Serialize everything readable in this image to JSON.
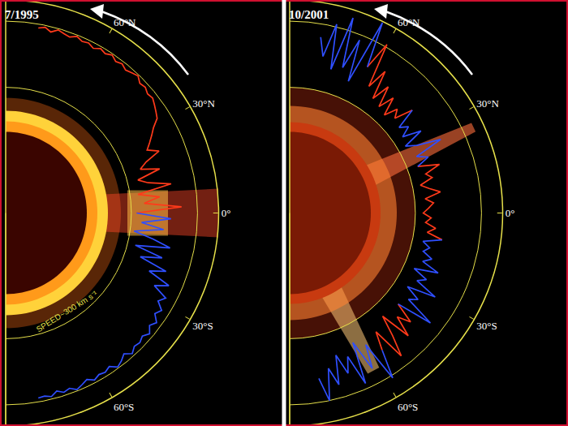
{
  "chart_data": [
    {
      "type": "polar",
      "title": "7/1995",
      "x": [
        80,
        78,
        76,
        74,
        72,
        70,
        68,
        66,
        64,
        62,
        60,
        58,
        56,
        54,
        52,
        50,
        48,
        46,
        44,
        42,
        40,
        38,
        36,
        34,
        32,
        30,
        28,
        26,
        24,
        22,
        20,
        18,
        16,
        14,
        12,
        10,
        8,
        6,
        4,
        2,
        0,
        -2,
        -4,
        -6,
        -8,
        -10,
        -12,
        -14,
        -16,
        -18,
        -20,
        -22,
        -24,
        -26,
        -28,
        -30,
        -32,
        -34,
        -36,
        -38,
        -40,
        -42,
        -44,
        -46,
        -48,
        -50,
        -52,
        -54,
        -56,
        -58,
        -60,
        -62,
        -64,
        -66,
        -68,
        -70,
        -72,
        -74,
        -76,
        -78,
        -80
      ],
      "xlim": [
        -90,
        90
      ],
      "xticks": [
        {
          "value": 60,
          "label": "60°N"
        },
        {
          "value": 30,
          "label": "30°N"
        },
        {
          "value": 0,
          "label": "0°"
        },
        {
          "value": -30,
          "label": "30°S"
        },
        {
          "value": -60,
          "label": "60°S"
        }
      ],
      "ylim": [
        -650,
        960
      ],
      "yticks": [
        300,
        800
      ],
      "grid": true,
      "tick_labels": "x",
      "series": [
        {
          "color": "#ff3a1a",
          "values": [
            770,
            785,
            760,
            790,
            775,
            765,
            790,
            770,
            780,
            760,
            785,
            770,
            790,
            765,
            780,
            760,
            775,
            790,
            760,
            770,
            750,
            760,
            740,
            720,
            700,
            640,
            600,
            560,
            520,
            600,
            480,
            420,
            560,
            380,
            450,
            620,
            360,
            520,
            400,
            680,
            340,
            null,
            null,
            null,
            null,
            null,
            null,
            null,
            null,
            null,
            null,
            null,
            null,
            null,
            null,
            null,
            null,
            null,
            null,
            null,
            null,
            null,
            null,
            null,
            null,
            null,
            null,
            null,
            null,
            null,
            null,
            null,
            null,
            null,
            null,
            null,
            null,
            null,
            null,
            null,
            null
          ]
        },
        {
          "color": "#2f4fff",
          "values": [
            null,
            null,
            null,
            null,
            null,
            null,
            null,
            null,
            null,
            null,
            null,
            null,
            null,
            null,
            null,
            null,
            null,
            null,
            null,
            null,
            null,
            null,
            null,
            null,
            null,
            null,
            null,
            null,
            null,
            null,
            null,
            null,
            null,
            null,
            null,
            null,
            null,
            null,
            null,
            null,
            340,
            600,
            380,
            550,
            330,
            480,
            620,
            360,
            580,
            420,
            640,
            520,
            700,
            600,
            720,
            680,
            740,
            710,
            760,
            730,
            770,
            740,
            760,
            750,
            780,
            740,
            770,
            790,
            750,
            770,
            760,
            780,
            750,
            770,
            790,
            760,
            775,
            750,
            780,
            765,
            770
          ]
        }
      ],
      "annotations": [
        {
          "text": "SPEED~300 km s⁻¹"
        }
      ]
    },
    {
      "type": "polar",
      "title": "10/2001",
      "x": [
        80,
        78,
        76,
        74,
        72,
        70,
        68,
        66,
        64,
        62,
        60,
        58,
        56,
        54,
        52,
        50,
        48,
        46,
        44,
        42,
        40,
        38,
        36,
        34,
        32,
        30,
        28,
        26,
        24,
        22,
        20,
        18,
        16,
        14,
        12,
        10,
        8,
        6,
        4,
        2,
        0,
        -2,
        -4,
        -6,
        -8,
        -10,
        -12,
        -14,
        -16,
        -18,
        -20,
        -22,
        -24,
        -26,
        -28,
        -30,
        -32,
        -34,
        -36,
        -38,
        -40,
        -42,
        -44,
        -46,
        -48,
        -50,
        -52,
        -54,
        -56,
        -58,
        -60,
        -62,
        -64,
        -66,
        -68,
        -70,
        -72,
        -74,
        -76,
        -78,
        -80
      ],
      "xlim": [
        -90,
        90
      ],
      "xticks": [
        {
          "value": 60,
          "label": "60°N"
        },
        {
          "value": 30,
          "label": "30°N"
        },
        {
          "value": 0,
          "label": "0°"
        },
        {
          "value": -30,
          "label": "30°S"
        },
        {
          "value": -60,
          "label": "60°S"
        }
      ],
      "ylim": [
        -650,
        960
      ],
      "yticks": [
        300,
        800
      ],
      "grid": true,
      "tick_labels": "x",
      "series": [
        {
          "color": "#ff3a1a",
          "values": [
            null,
            null,
            null,
            null,
            null,
            null,
            null,
            null,
            null,
            600,
            820,
            480,
            640,
            420,
            560,
            400,
            520,
            380,
            480,
            420,
            560,
            null,
            null,
            null,
            null,
            null,
            null,
            null,
            null,
            null,
            380,
            540,
            420,
            460,
            360,
            420,
            500,
            380,
            440,
            400,
            360,
            420,
            380,
            460,
            400,
            520,
            null,
            null,
            null,
            null,
            null,
            null,
            null,
            null,
            null,
            null,
            null,
            null,
            null,
            null,
            420,
            580,
            480,
            640,
            400,
            560,
            720,
            460,
            600,
            null,
            null,
            null,
            null,
            null,
            null,
            null,
            null,
            null,
            null,
            null,
            null
          ]
        },
        {
          "color": "#2f4fff",
          "values": [
            700,
            560,
            820,
            480,
            900,
            520,
            760,
            440,
            950,
            600,
            null,
            null,
            null,
            null,
            null,
            null,
            null,
            null,
            null,
            null,
            560,
            400,
            460,
            380,
            520,
            360,
            440,
            620,
            400,
            480,
            380,
            null,
            null,
            null,
            null,
            null,
            null,
            null,
            null,
            null,
            null,
            null,
            null,
            null,
            null,
            520,
            380,
            440,
            400,
            480,
            420,
            560,
            380,
            500,
            440,
            620,
            400,
            520,
            460,
            700,
            420,
            null,
            null,
            null,
            null,
            null,
            null,
            null,
            600,
            820,
            500,
            680,
            440,
            760,
            520,
            640,
            480,
            700,
            560,
            800,
            620
          ]
        }
      ]
    }
  ]
}
